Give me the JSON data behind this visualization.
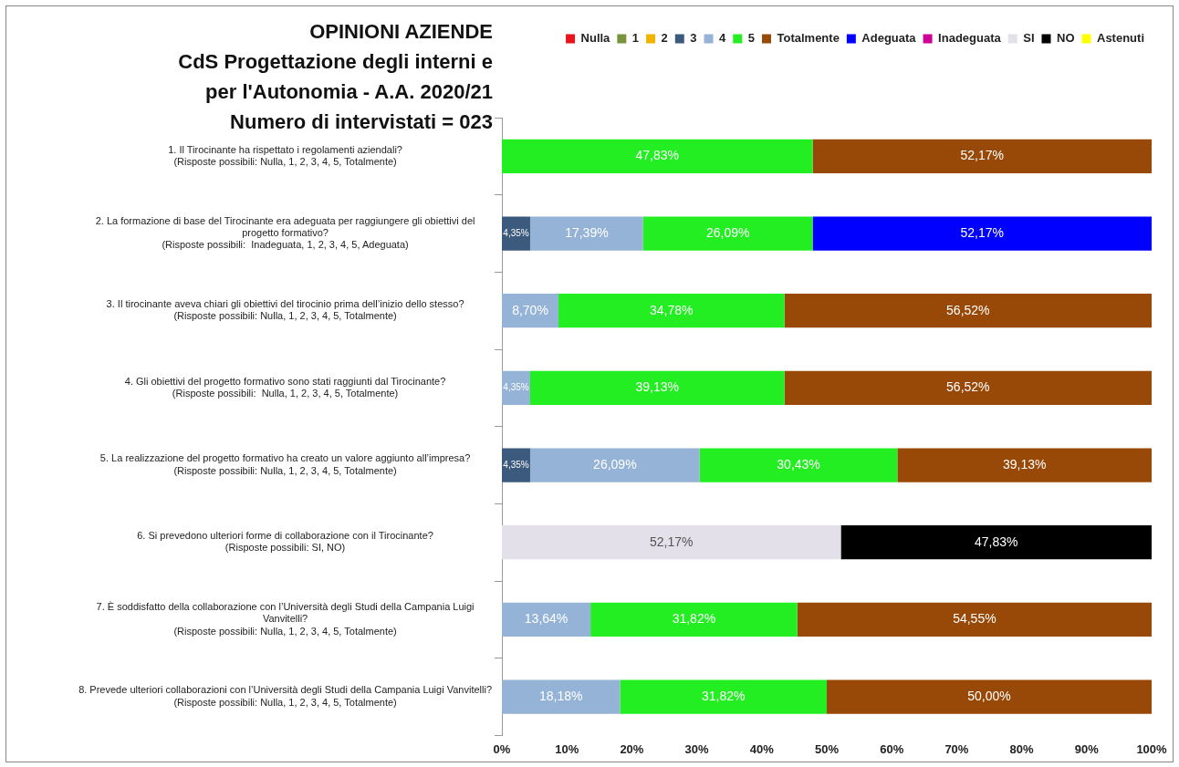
{
  "chart_data": {
    "type": "bar",
    "orientation": "horizontal",
    "stacked": true,
    "title": "OPINIONI AZIENDE",
    "subtitle": "CdS Progettazione degli interni e per l'Autonomia - A.A. 2020/21\nNumero di intervistati = 023",
    "categories": [
      "1. Il Tirocinante ha rispettato i regolamenti aziendali?\n(Risposte possibili: Nulla, 1, 2, 3, 4, 5, Totalmente)",
      "2. La formazione di base del Tirocinante era adeguata per raggiungere gli obiettivi del\nprogetto formativo?\n(Risposte possibili:  Inadeguata, 1, 2, 3, 4, 5, Adeguata)",
      "3. Il tirocinante aveva chiari gli obiettivi del tirocinio prima dell’inizio dello stesso?\n(Risposte possibili: Nulla, 1, 2, 3, 4, 5, Totalmente)",
      "4. Gli obiettivi del progetto formativo sono stati raggiunti dal Tirocinante?\n(Risposte possibili:  Nulla, 1, 2, 3, 4, 5, Totalmente)",
      "5. La realizzazione del progetto formativo ha creato un valore aggiunto all’impresa?\n(Risposte possibili: Nulla, 1, 2, 3, 4, 5, Totalmente)",
      "6. Si prevedono ulteriori forme di collaborazione con il Tirocinante?\n(Risposte possibili: SI, NO)",
      "7. È soddisfatto della collaborazione con l’Università degli Studi della Campania Luigi\nVanvitelli?\n(Risposte possibili: Nulla, 1, 2, 3, 4, 5, Totalmente)",
      "8. Prevede ulteriori collaborazioni con l’Università degli Studi della Campania Luigi Vanvitelli?\n(Risposte possibili: Nulla, 1, 2, 3, 4, 5, Totalmente)"
    ],
    "series": [
      {
        "name": "Nulla",
        "color": "#e8141c",
        "values": [
          null,
          null,
          null,
          null,
          null,
          null,
          null,
          null
        ]
      },
      {
        "name": "1",
        "color": "#77933c",
        "values": [
          null,
          null,
          null,
          null,
          null,
          null,
          null,
          null
        ]
      },
      {
        "name": "2",
        "color": "#f0b400",
        "values": [
          null,
          null,
          null,
          null,
          null,
          null,
          null,
          null
        ]
      },
      {
        "name": "3",
        "color": "#3c5a7d",
        "values": [
          null,
          4.35,
          null,
          null,
          4.35,
          null,
          null,
          null
        ],
        "value_labels": [
          null,
          "4,35%",
          null,
          null,
          "4,35%",
          null,
          null,
          null
        ]
      },
      {
        "name": "4",
        "color": "#95b3d7",
        "values": [
          null,
          17.39,
          8.7,
          4.35,
          26.09,
          null,
          13.64,
          18.18
        ],
        "value_labels": [
          null,
          "17,39%",
          "8,70%",
          "4,35%",
          "26,09%",
          null,
          "13,64%",
          "18,18%"
        ]
      },
      {
        "name": "5",
        "color": "#22ee22",
        "values": [
          47.83,
          26.09,
          34.78,
          39.13,
          30.43,
          null,
          31.82,
          31.82
        ],
        "value_labels": [
          "47,83%",
          "26,09%",
          "34,78%",
          "39,13%",
          "30,43%",
          null,
          "31,82%",
          "31,82%"
        ]
      },
      {
        "name": "Totalmente",
        "color": "#984807",
        "values": [
          52.17,
          null,
          56.52,
          56.52,
          39.13,
          null,
          54.55,
          50.0
        ],
        "value_labels": [
          "52,17%",
          null,
          "56,52%",
          "56,52%",
          "39,13%",
          null,
          "54,55%",
          "50,00%"
        ]
      },
      {
        "name": "Adeguata",
        "color": "#0000ff",
        "values": [
          null,
          52.17,
          null,
          null,
          null,
          null,
          null,
          null
        ],
        "value_labels": [
          null,
          "52,17%",
          null,
          null,
          null,
          null,
          null,
          null
        ]
      },
      {
        "name": "Inadeguata",
        "color": "#cc0099",
        "values": [
          null,
          null,
          null,
          null,
          null,
          null,
          null,
          null
        ]
      },
      {
        "name": "SI",
        "color": "#e4e0ea",
        "values": [
          null,
          null,
          null,
          null,
          null,
          52.17,
          null,
          null
        ],
        "value_labels": [
          null,
          null,
          null,
          null,
          null,
          "52,17%",
          null,
          null
        ]
      },
      {
        "name": "NO",
        "color": "#000000",
        "values": [
          null,
          null,
          null,
          null,
          null,
          47.83,
          null,
          null
        ],
        "value_labels": [
          null,
          null,
          null,
          null,
          null,
          "47,83%",
          null,
          null
        ]
      },
      {
        "name": "Astenuti",
        "color": "#ffff00",
        "values": [
          null,
          null,
          null,
          null,
          null,
          null,
          null,
          null
        ]
      }
    ],
    "xlim": [
      0,
      100
    ],
    "xticks": [
      {
        "value": 0,
        "label": "0%"
      },
      {
        "value": 10,
        "label": "10%"
      },
      {
        "value": 20,
        "label": "20%"
      },
      {
        "value": 30,
        "label": "30%"
      },
      {
        "value": 40,
        "label": "40%"
      },
      {
        "value": 50,
        "label": "50%"
      },
      {
        "value": 60,
        "label": "60%"
      },
      {
        "value": 70,
        "label": "70%"
      },
      {
        "value": 80,
        "label": "80%"
      },
      {
        "value": 90,
        "label": "90%"
      },
      {
        "value": 100,
        "label": "100%"
      }
    ],
    "grid": false,
    "legend": "top right"
  }
}
